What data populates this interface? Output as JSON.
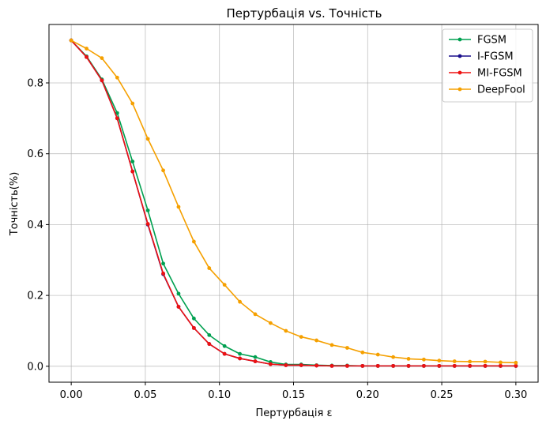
{
  "chart_data": {
    "type": "line",
    "title": "Пертурбація vs. Точність",
    "xlabel": "Пертурбація ε",
    "ylabel": "Точність(%)",
    "xlim": [
      -0.015,
      0.315
    ],
    "ylim": [
      -0.045,
      0.965
    ],
    "xticks": [
      "0.00",
      "0.05",
      "0.10",
      "0.15",
      "0.20",
      "0.25",
      "0.30"
    ],
    "yticks": [
      "0.0",
      "0.2",
      "0.4",
      "0.6",
      "0.8"
    ],
    "grid": true,
    "legend_position": "top-right",
    "x": [
      0.0,
      0.01034,
      0.02069,
      0.03103,
      0.04138,
      0.05172,
      0.06207,
      0.07241,
      0.08276,
      0.0931,
      0.10345,
      0.11379,
      0.12414,
      0.13448,
      0.14483,
      0.15517,
      0.16552,
      0.17586,
      0.18621,
      0.19655,
      0.2069,
      0.21724,
      0.22759,
      0.23793,
      0.24828,
      0.25862,
      0.26897,
      0.27931,
      0.28966,
      0.3
    ],
    "series": [
      {
        "name": "FGSM",
        "color": "#00a050",
        "values": [
          0.92,
          0.875,
          0.81,
          0.715,
          0.578,
          0.44,
          0.29,
          0.205,
          0.135,
          0.088,
          0.057,
          0.035,
          0.026,
          0.012,
          0.005,
          0.005,
          0.003,
          0.002,
          0.002,
          0.001,
          0.001,
          0.001,
          0.001,
          0.001,
          0.001,
          0.001,
          0.001,
          0.001,
          0.001,
          0.001
        ]
      },
      {
        "name": "I-FGSM",
        "color": "#1a0f8c",
        "values": [
          0.92,
          0.873,
          0.807,
          0.7,
          0.55,
          0.4,
          0.26,
          0.168,
          0.108,
          0.063,
          0.035,
          0.022,
          0.014,
          0.006,
          0.003,
          0.003,
          0.002,
          0.001,
          0.001,
          0.001,
          0.001,
          0.001,
          0.001,
          0.001,
          0.001,
          0.001,
          0.001,
          0.001,
          0.001,
          0.001
        ]
      },
      {
        "name": "MI-FGSM",
        "color": "#ee1111",
        "values": [
          0.92,
          0.873,
          0.807,
          0.7,
          0.55,
          0.402,
          0.262,
          0.168,
          0.108,
          0.063,
          0.035,
          0.022,
          0.014,
          0.006,
          0.003,
          0.003,
          0.002,
          0.001,
          0.001,
          0.001,
          0.001,
          0.001,
          0.001,
          0.001,
          0.001,
          0.001,
          0.001,
          0.001,
          0.001,
          0.001
        ]
      },
      {
        "name": "DeepFool",
        "color": "#f5a000",
        "values": [
          0.92,
          0.897,
          0.87,
          0.815,
          0.742,
          0.642,
          0.553,
          0.45,
          0.352,
          0.277,
          0.23,
          0.182,
          0.147,
          0.122,
          0.1,
          0.083,
          0.073,
          0.06,
          0.052,
          0.039,
          0.033,
          0.026,
          0.021,
          0.019,
          0.016,
          0.014,
          0.013,
          0.013,
          0.011,
          0.01
        ]
      }
    ]
  }
}
